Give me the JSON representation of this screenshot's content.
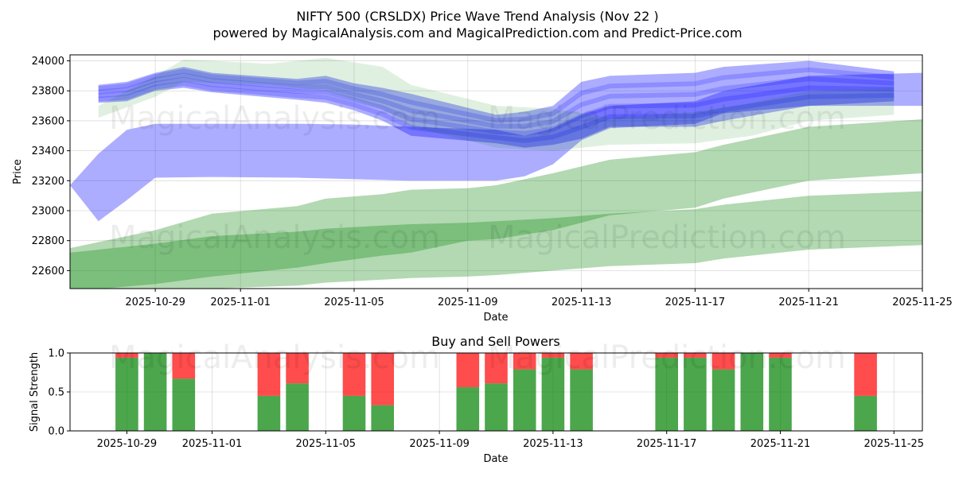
{
  "title_line1": "NIFTY 500 (CRSLDX) Price Wave Trend Analysis (Nov 22 )",
  "title_line2": "powered by MagicalAnalysis.com and MagicalPrediction.com and Predict-Price.com",
  "watermarks": [
    "MagicalAnalysis.com",
    "MagicalPrediction.com"
  ],
  "colors": {
    "blue_band": "#0000ff",
    "green_band": "#008000",
    "buy": "#008000",
    "sell": "#ff0000",
    "grid": "#b0b0b0"
  },
  "chart_data": [
    {
      "type": "area",
      "title": "NIFTY 500 (CRSLDX) Price Wave Trend Analysis (Nov 22 )",
      "xlabel": "Date",
      "ylabel": "Price",
      "x_range": [
        "2025-10-26",
        "2025-11-25"
      ],
      "ylim": [
        22480,
        24040
      ],
      "y_ticks": [
        22600,
        22800,
        23000,
        23200,
        23400,
        23600,
        23800,
        24000
      ],
      "x_ticks": [
        "2025-10-29",
        "2025-11-01",
        "2025-11-05",
        "2025-11-09",
        "2025-11-13",
        "2025-11-17",
        "2025-11-21",
        "2025-11-25"
      ],
      "series": [
        {
          "name": "blue wave (wide)",
          "color": "blue",
          "x": [
            "2025-10-26",
            "2025-10-27",
            "2025-10-28",
            "2025-10-29",
            "2025-10-31",
            "2025-11-03",
            "2025-11-05",
            "2025-11-07",
            "2025-11-10",
            "2025-11-11",
            "2025-11-12",
            "2025-11-13",
            "2025-11-14",
            "2025-11-17",
            "2025-11-18",
            "2025-11-21",
            "2025-11-25"
          ],
          "upper": [
            23170,
            23380,
            23540,
            23580,
            23580,
            23580,
            23575,
            23560,
            23540,
            23500,
            23550,
            23640,
            23700,
            23730,
            23800,
            23900,
            23920
          ],
          "lower": [
            23170,
            22930,
            23070,
            23220,
            23225,
            23220,
            23210,
            23200,
            23200,
            23230,
            23310,
            23470,
            23550,
            23580,
            23650,
            23700,
            23700
          ]
        },
        {
          "name": "blue wave (upper cluster)",
          "color": "blue",
          "x": [
            "2025-10-27",
            "2025-10-28",
            "2025-10-29",
            "2025-10-30",
            "2025-10-31",
            "2025-11-03",
            "2025-11-04",
            "2025-11-05",
            "2025-11-06",
            "2025-11-07",
            "2025-11-10",
            "2025-11-11",
            "2025-11-12",
            "2025-11-13",
            "2025-11-14",
            "2025-11-17",
            "2025-11-18",
            "2025-11-21",
            "2025-11-24"
          ],
          "upper": [
            23840,
            23860,
            23920,
            23960,
            23920,
            23880,
            23900,
            23850,
            23820,
            23780,
            23640,
            23660,
            23700,
            23860,
            23900,
            23920,
            23960,
            24000,
            23930
          ],
          "lower": [
            23720,
            23730,
            23800,
            23820,
            23790,
            23740,
            23720,
            23670,
            23600,
            23500,
            23450,
            23420,
            23440,
            23480,
            23560,
            23560,
            23600,
            23700,
            23730
          ]
        },
        {
          "name": "green wave (upper)",
          "color": "green",
          "x": [
            "2025-10-26",
            "2025-10-29",
            "2025-10-31",
            "2025-11-03",
            "2025-11-04",
            "2025-11-06",
            "2025-11-07",
            "2025-11-09",
            "2025-11-10",
            "2025-11-12",
            "2025-11-14",
            "2025-11-17",
            "2025-11-18",
            "2025-11-21",
            "2025-11-25"
          ],
          "upper": [
            22750,
            22870,
            22980,
            23030,
            23080,
            23110,
            23140,
            23150,
            23170,
            23250,
            23340,
            23390,
            23440,
            23560,
            23610
          ],
          "lower": [
            22460,
            22510,
            22560,
            22620,
            22650,
            22700,
            22720,
            22800,
            22810,
            22870,
            22970,
            23020,
            23080,
            23200,
            23250
          ]
        },
        {
          "name": "green wave (lower)",
          "color": "green",
          "x": [
            "2025-10-26",
            "2025-10-29",
            "2025-10-31",
            "2025-11-03",
            "2025-11-04",
            "2025-11-06",
            "2025-11-07",
            "2025-11-09",
            "2025-11-10",
            "2025-11-12",
            "2025-11-14",
            "2025-11-17",
            "2025-11-18",
            "2025-11-21",
            "2025-11-25"
          ],
          "upper": [
            22720,
            22780,
            22830,
            22860,
            22880,
            22900,
            22910,
            22920,
            22930,
            22950,
            22980,
            23010,
            23040,
            23100,
            23130
          ],
          "lower": [
            22480,
            22480,
            22480,
            22500,
            22520,
            22540,
            22550,
            22560,
            22570,
            22600,
            22630,
            22650,
            22680,
            22740,
            22770
          ]
        },
        {
          "name": "green wave (light upper)",
          "color": "green",
          "x": [
            "2025-10-27",
            "2025-10-29",
            "2025-10-30",
            "2025-11-02",
            "2025-11-04",
            "2025-11-06",
            "2025-11-07",
            "2025-11-10",
            "2025-11-12",
            "2025-11-14",
            "2025-11-17",
            "2025-11-19",
            "2025-11-21",
            "2025-11-24"
          ],
          "upper": [
            23700,
            23900,
            24010,
            23980,
            24020,
            23960,
            23840,
            23700,
            23680,
            23620,
            23660,
            23720,
            23800,
            23820
          ],
          "lower": [
            23620,
            23760,
            23860,
            23840,
            23800,
            23680,
            23560,
            23420,
            23400,
            23440,
            23450,
            23500,
            23600,
            23640
          ]
        }
      ]
    },
    {
      "type": "bar",
      "title": "Buy and Sell Powers",
      "xlabel": "Date",
      "ylabel": "Signal Strength",
      "ylim": [
        0,
        1
      ],
      "y_ticks": [
        "0.0",
        "0.5",
        "1.0"
      ],
      "x_ticks": [
        "2025-10-29",
        "2025-11-01",
        "2025-11-05",
        "2025-11-09",
        "2025-11-13",
        "2025-11-17",
        "2025-11-21",
        "2025-11-25"
      ],
      "dates": [
        "2025-10-29",
        "2025-10-30",
        "2025-10-31",
        "2025-11-03",
        "2025-11-04",
        "2025-11-06",
        "2025-11-07",
        "2025-11-10",
        "2025-11-11",
        "2025-11-12",
        "2025-11-13",
        "2025-11-14",
        "2025-11-17",
        "2025-11-18",
        "2025-11-19",
        "2025-11-20",
        "2025-11-21",
        "2025-11-24"
      ],
      "buy": [
        0.94,
        1.0,
        0.67,
        0.45,
        0.61,
        0.45,
        0.33,
        0.56,
        0.61,
        0.79,
        0.94,
        0.79,
        0.94,
        0.94,
        0.79,
        1.0,
        0.94,
        0.45
      ],
      "sell": [
        0.06,
        0.0,
        0.33,
        0.55,
        0.39,
        0.55,
        0.67,
        0.44,
        0.39,
        0.21,
        0.06,
        0.21,
        0.06,
        0.06,
        0.21,
        0.0,
        0.06,
        0.55
      ]
    }
  ]
}
